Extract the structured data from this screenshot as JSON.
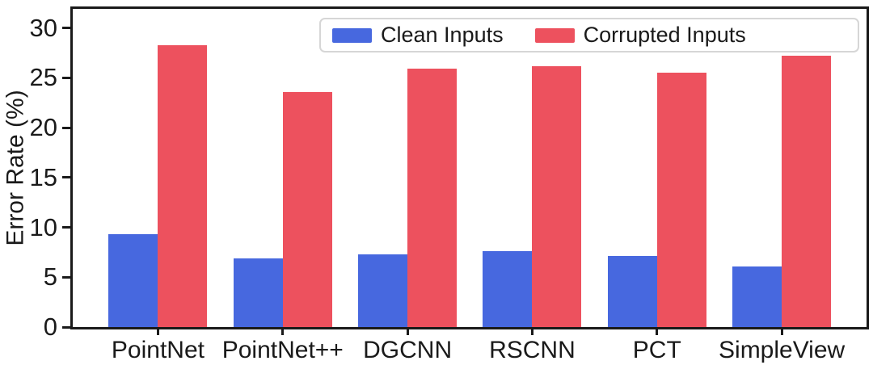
{
  "chart_data": {
    "type": "bar",
    "title": "",
    "xlabel": "",
    "ylabel": "Error Rate (%)",
    "categories": [
      "PointNet",
      "PointNet++",
      "DGCNN",
      "RSCNN",
      "PCT",
      "SimpleView"
    ],
    "series": [
      {
        "name": "Clean Inputs",
        "color": "#4768DF",
        "values": [
          9.3,
          6.9,
          7.3,
          7.6,
          7.1,
          6.1
        ]
      },
      {
        "name": "Corrupted Inputs",
        "color": "#ED515E",
        "values": [
          28.3,
          23.6,
          25.9,
          26.2,
          25.5,
          27.2
        ]
      }
    ],
    "ylim": [
      0,
      32
    ],
    "yticks": [
      0,
      5,
      10,
      15,
      20,
      25,
      30
    ],
    "grid": false,
    "legend_position": "upper-right-inside"
  },
  "colors": {
    "axis": "#1a1a1a",
    "background": "#ffffff",
    "legend_border": "#d6d6d6",
    "legend_background": "#ffffff"
  }
}
